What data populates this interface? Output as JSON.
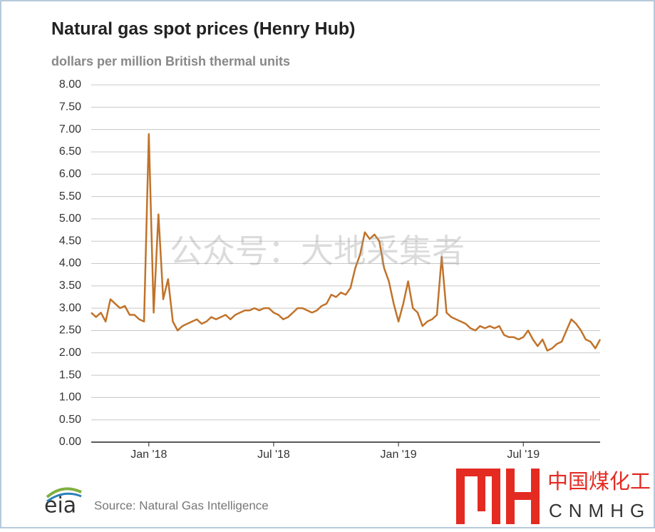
{
  "chart_data": {
    "type": "line",
    "title": "Natural gas spot prices (Henry Hub)",
    "subtitle": "dollars per million British thermal units",
    "categories": [
      null,
      null,
      null,
      null,
      null,
      null,
      null,
      null,
      null,
      null,
      null,
      null,
      "Jan '18",
      null,
      null,
      null,
      null,
      null,
      null,
      null,
      null,
      null,
      null,
      null,
      null,
      null,
      null,
      null,
      null,
      null,
      null,
      null,
      null,
      null,
      null,
      null,
      null,
      null,
      "Jul '18",
      null,
      null,
      null,
      null,
      null,
      null,
      null,
      null,
      null,
      null,
      null,
      null,
      null,
      null,
      null,
      null,
      null,
      null,
      null,
      null,
      null,
      null,
      null,
      null,
      null,
      "Jan '19",
      null,
      null,
      null,
      null,
      null,
      null,
      null,
      null,
      null,
      null,
      null,
      null,
      null,
      null,
      null,
      null,
      null,
      null,
      null,
      null,
      null,
      null,
      null,
      null,
      null,
      "Jul '19",
      null,
      null,
      null,
      null,
      null,
      null,
      null,
      null,
      null,
      null,
      null,
      null,
      null,
      null,
      null,
      null
    ],
    "values": [
      2.9,
      2.8,
      2.9,
      2.7,
      3.2,
      3.1,
      3.0,
      3.05,
      2.85,
      2.85,
      2.75,
      2.7,
      6.9,
      2.9,
      5.1,
      3.2,
      3.65,
      2.7,
      2.5,
      2.6,
      2.65,
      2.7,
      2.75,
      2.65,
      2.7,
      2.8,
      2.75,
      2.8,
      2.85,
      2.75,
      2.85,
      2.9,
      2.95,
      2.95,
      3.0,
      2.95,
      3.0,
      3.0,
      2.9,
      2.85,
      2.75,
      2.8,
      2.9,
      3.0,
      3.0,
      2.95,
      2.9,
      2.95,
      3.05,
      3.1,
      3.3,
      3.25,
      3.35,
      3.3,
      3.45,
      3.9,
      4.2,
      4.7,
      4.55,
      4.65,
      4.5,
      3.9,
      3.6,
      3.1,
      2.7,
      3.1,
      3.6,
      3.0,
      2.9,
      2.6,
      2.7,
      2.75,
      2.85,
      4.15,
      2.9,
      2.8,
      2.75,
      2.7,
      2.65,
      2.55,
      2.5,
      2.6,
      2.55,
      2.6,
      2.55,
      2.6,
      2.4,
      2.35,
      2.35,
      2.3,
      2.35,
      2.5,
      2.3,
      2.15,
      2.3,
      2.05,
      2.1,
      2.2,
      2.25,
      2.5,
      2.75,
      2.65,
      2.5,
      2.3,
      2.25,
      2.1,
      2.3
    ],
    "color": "#c0732a",
    "ylim": [
      0,
      8
    ],
    "yticks": [
      {
        "value": 0,
        "label": "0.00"
      },
      {
        "value": 0.5,
        "label": "0.50"
      },
      {
        "value": 1,
        "label": "1.00"
      },
      {
        "value": 1.5,
        "label": "1.50"
      },
      {
        "value": 2,
        "label": "2.00"
      },
      {
        "value": 2.5,
        "label": "2.50"
      },
      {
        "value": 3,
        "label": "3.00"
      },
      {
        "value": 3.5,
        "label": "3.50"
      },
      {
        "value": 4,
        "label": "4.00"
      },
      {
        "value": 4.5,
        "label": "4.50"
      },
      {
        "value": 5,
        "label": "5.00"
      },
      {
        "value": 5.5,
        "label": "5.50"
      },
      {
        "value": 6,
        "label": "6.00"
      },
      {
        "value": 6.5,
        "label": "6.50"
      },
      {
        "value": 7,
        "label": "7.00"
      },
      {
        "value": 7.5,
        "label": "7.50"
      },
      {
        "value": 8,
        "label": "8.00"
      }
    ],
    "grid": true,
    "source": "Source: Natural Gas Intelligence",
    "watermark": "公众号：大地采集者"
  },
  "logo": {
    "eia": "eia",
    "chinese": "中国煤化工",
    "latin": "CNMHG"
  }
}
